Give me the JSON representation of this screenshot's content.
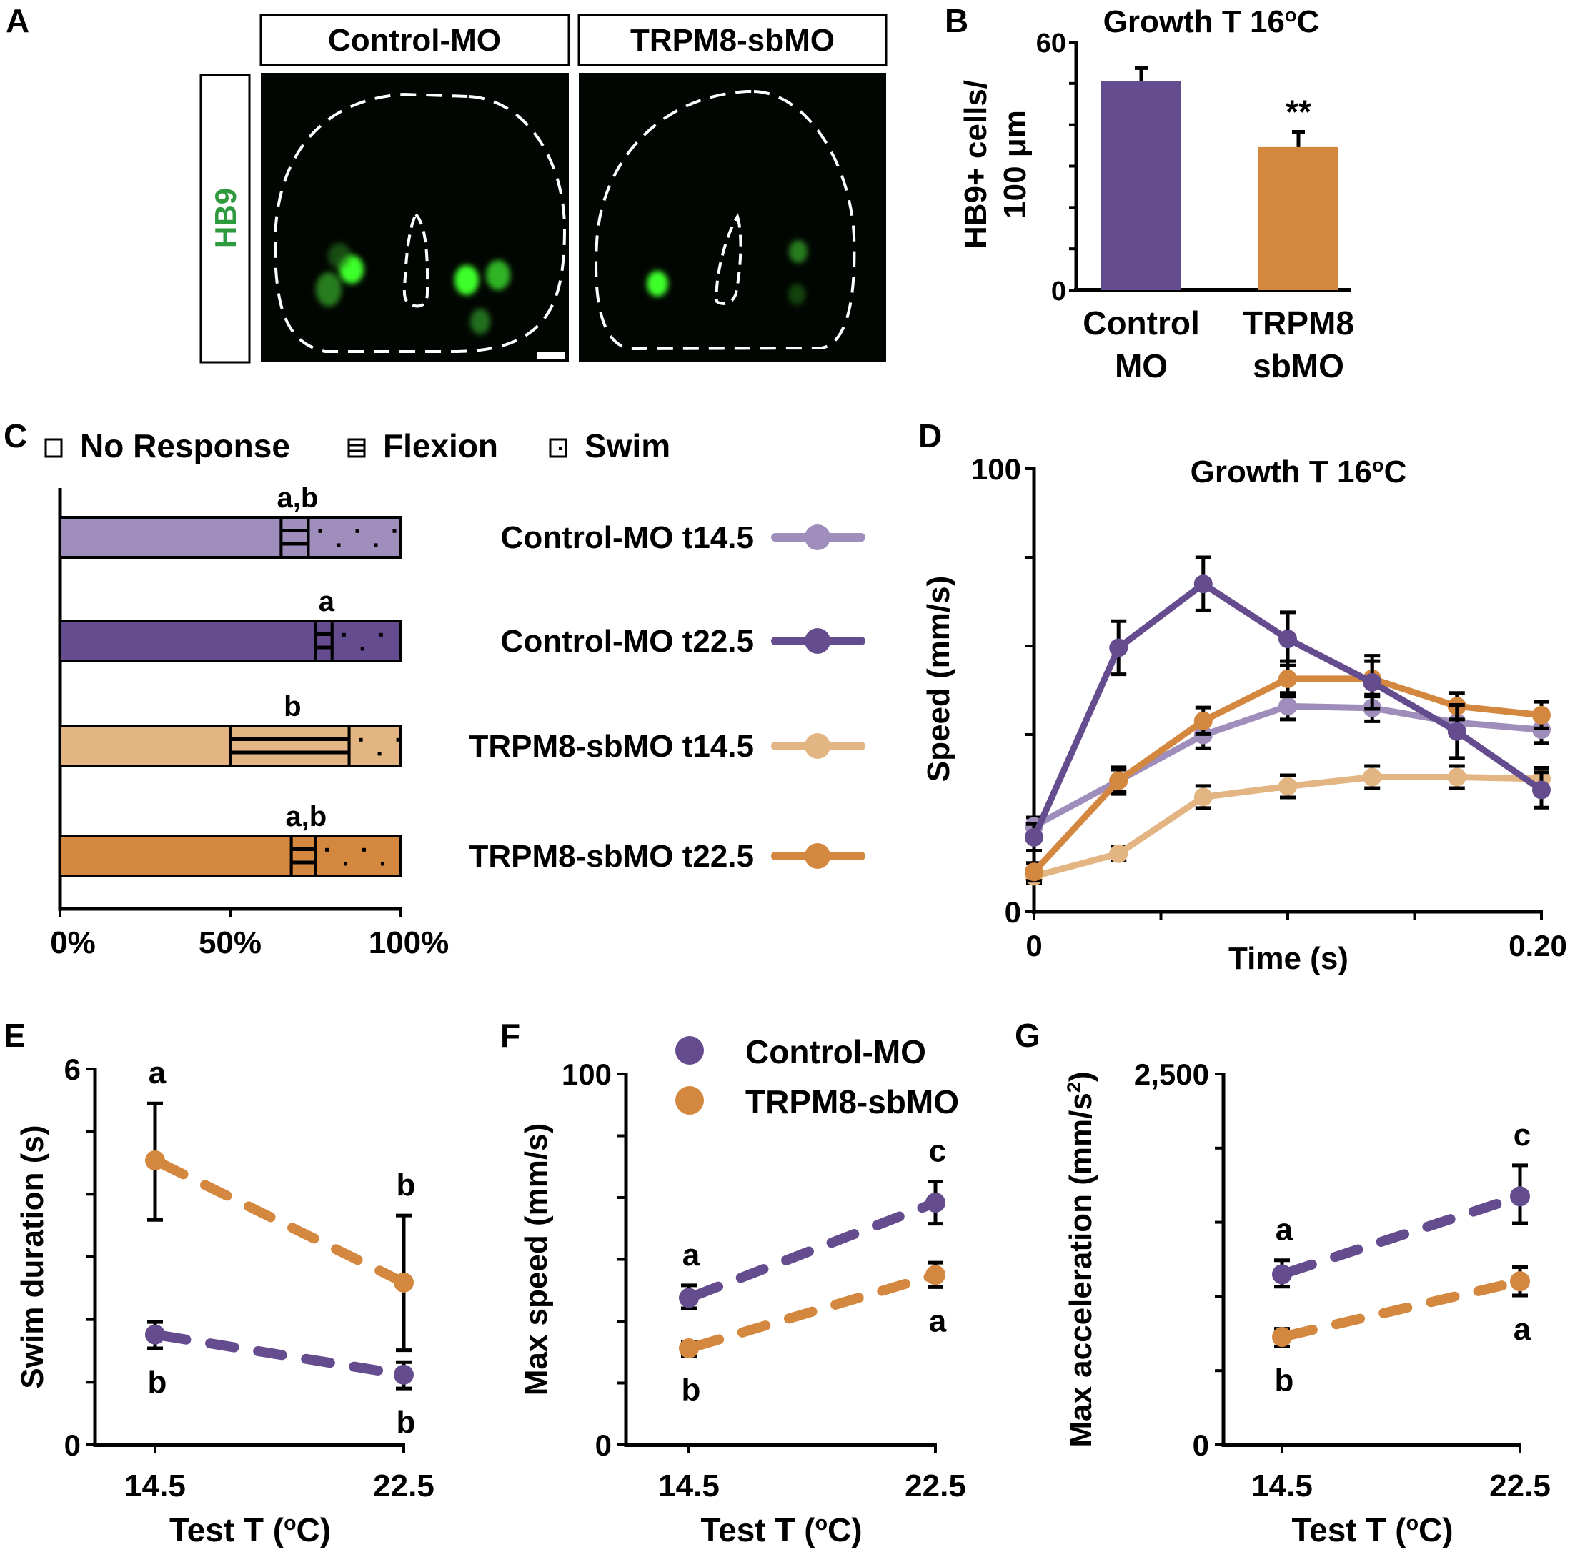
{
  "colors": {
    "control_t14": "#9f8dbb",
    "control_t22": "#654c8e",
    "trpm8_t14": "#e3b582",
    "trpm8_t22": "#d4883f",
    "hb9_green": "#2e9a3e",
    "micrograph_bg": "#020602",
    "cell_bright": "#3cff2a",
    "cell_dim": "#2fa82a"
  },
  "panel_letters": [
    "A",
    "B",
    "C",
    "D",
    "E",
    "F",
    "G"
  ],
  "panel_a": {
    "column_headers": [
      "Control-MO",
      "TRPM8-sbMO"
    ],
    "row_label": "HB9"
  },
  "chart_data": [
    {
      "panel": "B",
      "type": "bar",
      "title": "Growth T 16°C",
      "title_parts": {
        "main": "Growth T 16",
        "sup": "o",
        "unit": "C"
      },
      "ylabel_lines": [
        "HB9+ cells/",
        "100 μm"
      ],
      "categories": [
        [
          "Control",
          "MO"
        ],
        [
          "TRPM8",
          "sbMO"
        ]
      ],
      "values": [
        50.6,
        34.6
      ],
      "error_upper": [
        53.7,
        38.3
      ],
      "significance": [
        "",
        "**"
      ],
      "ylim": [
        0,
        60
      ],
      "yticks": [
        0,
        10,
        20,
        30,
        40,
        50,
        60
      ],
      "ytick_labels": [
        "0",
        "",
        "",
        "",
        "",
        "",
        "60"
      ]
    },
    {
      "panel": "C",
      "type": "bar",
      "orientation": "horizontal-stacked",
      "legend": [
        "No Response",
        "Flexion",
        "Swim"
      ],
      "legend_position": "top",
      "categories": [
        "Control-MO t14.5",
        "Control-MO t22.5",
        "TRPM8-sbMO t14.5",
        "TRPM8-sbMO t22.5"
      ],
      "series": [
        {
          "name": "No Response",
          "values": [
            65,
            75,
            50,
            68
          ]
        },
        {
          "name": "Flexion",
          "values": [
            8,
            5,
            35,
            7
          ]
        },
        {
          "name": "Swim",
          "values": [
            27,
            20,
            15,
            25
          ]
        }
      ],
      "annotations": [
        "a,b",
        "a",
        "b",
        "a,b"
      ],
      "xlim": [
        0,
        100
      ],
      "xtick_labels": [
        "0%",
        "50%",
        "100%"
      ],
      "xticks": [
        0,
        50,
        100
      ]
    },
    {
      "panel": "D",
      "type": "line",
      "title_parts": {
        "main": "Growth T 16",
        "sup": "o",
        "unit": "C"
      },
      "xlabel": "Time (s)",
      "ylabel": "Speed (mm/s)",
      "x": [
        0,
        0.0333,
        0.0667,
        0.1,
        0.1333,
        0.1667,
        0.2
      ],
      "xlim": [
        0,
        0.2
      ],
      "ylim": [
        0,
        100
      ],
      "xtick_labels": [
        "0",
        "0.20"
      ],
      "ytick_labels": [
        "0",
        "100"
      ],
      "yticks": [
        0,
        20,
        40,
        60,
        80,
        100
      ],
      "xticks": [
        0,
        0.05,
        0.1,
        0.15,
        0.2
      ],
      "series": [
        {
          "name": "Control-MO t14.5",
          "key": "control_t14",
          "values": [
            19.3,
            29.6,
            39.9,
            46.4,
            46.0,
            42.7,
            41.1
          ],
          "err": [
            2,
            2.5,
            3,
            3,
            3,
            3,
            3
          ]
        },
        {
          "name": "TRPM8-sbMO t14.5",
          "key": "trpm8_t14",
          "values": [
            8.0,
            13.1,
            25.9,
            28.3,
            30.4,
            30.4,
            30.0
          ],
          "err": [
            1.5,
            1.5,
            2.5,
            2.5,
            2.5,
            2.5,
            2.5
          ]
        },
        {
          "name": "TRPM8-sbMO t22.5",
          "key": "trpm8_t22",
          "values": [
            9.0,
            29.6,
            43.1,
            52.6,
            52.6,
            46.4,
            44.4
          ],
          "err": [
            2,
            3,
            3,
            4,
            4,
            3,
            3
          ]
        },
        {
          "name": "Control-MO t22.5",
          "key": "control_t22",
          "values": [
            16.8,
            59.6,
            74.0,
            61.6,
            51.8,
            40.7,
            27.5
          ],
          "err": [
            3,
            6,
            6,
            6,
            6,
            6,
            4
          ]
        }
      ]
    },
    {
      "panel": "E",
      "type": "line",
      "xlabel": "Test T (°C)",
      "xlabel_parts": {
        "main": "Test T (",
        "sup": "o",
        "unit": "C)"
      },
      "ylabel": "Swim duration (s)",
      "x": [
        14.5,
        22.5
      ],
      "xtick_labels": [
        "14.5",
        "22.5"
      ],
      "ylim": [
        0,
        6
      ],
      "yticks": [
        0,
        1,
        2,
        3,
        4,
        5,
        6
      ],
      "ytick_labels": [
        "0",
        "",
        "",
        "",
        "",
        "",
        "6"
      ],
      "series": [
        {
          "name": "TRPM8-sbMO",
          "key": "trpm8_t22",
          "values": [
            4.54,
            2.59
          ],
          "err_low": [
            3.59,
            1.51
          ],
          "err_high": [
            5.45,
            3.66
          ],
          "letters": [
            "a",
            "b"
          ],
          "letter_pos": [
            "above",
            "above"
          ]
        },
        {
          "name": "Control-MO",
          "key": "control_t22",
          "values": [
            1.76,
            1.12
          ],
          "err_low": [
            1.54,
            0.9
          ],
          "err_high": [
            1.96,
            1.32
          ],
          "letters": [
            "b",
            "b"
          ],
          "letter_pos": [
            "below",
            "below"
          ]
        }
      ]
    },
    {
      "panel": "F",
      "type": "line",
      "xlabel_parts": {
        "main": "Test T (",
        "sup": "o",
        "unit": "C)"
      },
      "ylabel": "Max speed (mm/s)",
      "legend": [
        "Control-MO",
        "TRPM8-sbMO"
      ],
      "legend_position": "top-right",
      "x": [
        14.5,
        22.5
      ],
      "xtick_labels": [
        "14.5",
        "22.5"
      ],
      "ylim": [
        0,
        100
      ],
      "yticks": [
        0,
        16.67,
        33.33,
        50,
        66.67,
        83.33,
        100
      ],
      "ytick_labels": [
        "0",
        "",
        "",
        "",
        "",
        "",
        "100"
      ],
      "series": [
        {
          "name": "Control-MO",
          "key": "control_t22",
          "values": [
            39.6,
            65.3
          ],
          "err_low": [
            36.8,
            59.6
          ],
          "err_high": [
            43.0,
            71.0
          ],
          "letters": [
            "a",
            "c"
          ],
          "letter_pos": [
            "above",
            "above"
          ]
        },
        {
          "name": "TRPM8-sbMO",
          "key": "trpm8_t22",
          "values": [
            26.0,
            45.8
          ],
          "err_low": [
            24.0,
            42.5
          ],
          "err_high": [
            27.8,
            49.1
          ],
          "letters": [
            "b",
            "a"
          ],
          "letter_pos": [
            "below",
            "below"
          ]
        }
      ]
    },
    {
      "panel": "G",
      "type": "line",
      "xlabel_parts": {
        "main": "Test T (",
        "sup": "o",
        "unit": "C)"
      },
      "ylabel_parts": {
        "main": "Max acceleration (mm/s",
        "sup": "2",
        "unit": ")"
      },
      "x": [
        14.5,
        22.5
      ],
      "xtick_labels": [
        "14.5",
        "22.5"
      ],
      "ylim": [
        0,
        2500
      ],
      "yticks": [
        0,
        500,
        1000,
        1500,
        2000,
        2500
      ],
      "ytick_labels": [
        "0",
        "",
        "",
        "",
        "",
        "2,500"
      ],
      "series": [
        {
          "name": "Control-MO",
          "key": "control_t22",
          "values": [
            1149,
            1675
          ],
          "err_low": [
            1066,
            1493
          ],
          "err_high": [
            1244,
            1884
          ],
          "letters": [
            "a",
            "c"
          ],
          "letter_pos": [
            "above",
            "above"
          ]
        },
        {
          "name": "TRPM8-sbMO",
          "key": "trpm8_t22",
          "values": [
            727,
            1102
          ],
          "err_low": [
            663,
            1007
          ],
          "err_high": [
            782,
            1197
          ],
          "letters": [
            "b",
            "a"
          ],
          "letter_pos": [
            "below",
            "below"
          ]
        }
      ]
    }
  ]
}
